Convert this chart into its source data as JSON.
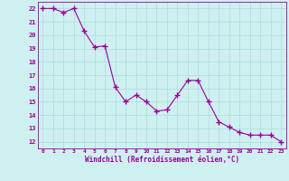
{
  "x": [
    0,
    1,
    2,
    3,
    4,
    5,
    6,
    7,
    8,
    9,
    10,
    11,
    12,
    13,
    14,
    15,
    16,
    17,
    18,
    19,
    20,
    21,
    22,
    23
  ],
  "y": [
    22,
    22,
    21.7,
    22,
    20.3,
    19.1,
    19.2,
    16.1,
    15.0,
    15.5,
    15.0,
    14.3,
    14.4,
    15.5,
    16.6,
    16.6,
    15.0,
    13.5,
    13.1,
    12.7,
    12.5,
    12.5,
    12.5,
    12.0
  ],
  "line_color": "#990099",
  "marker": "+",
  "marker_size": 4,
  "bg_color": "#cff0f0",
  "grid_color": "#aadddd",
  "xlabel": "Windchill (Refroidissement éolien,°C)",
  "xlabel_color": "#990099",
  "tick_color": "#990099",
  "ylim": [
    11.5,
    22.5
  ],
  "xlim": [
    -0.5,
    23.5
  ],
  "yticks": [
    12,
    13,
    14,
    15,
    16,
    17,
    18,
    19,
    20,
    21,
    22
  ],
  "xticks": [
    0,
    1,
    2,
    3,
    4,
    5,
    6,
    7,
    8,
    9,
    10,
    11,
    12,
    13,
    14,
    15,
    16,
    17,
    18,
    19,
    20,
    21,
    22,
    23
  ]
}
